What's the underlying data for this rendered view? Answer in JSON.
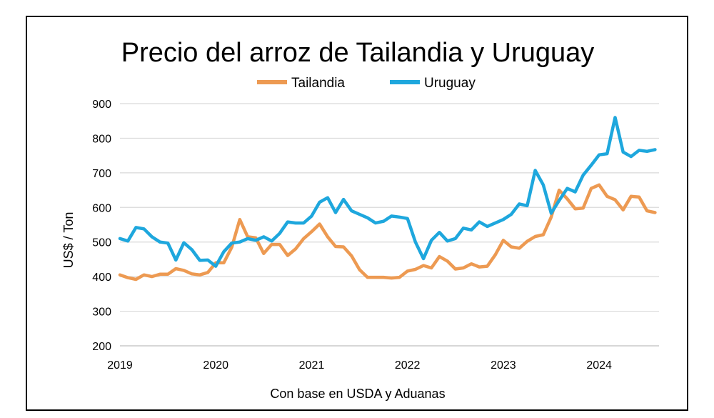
{
  "chart_data": {
    "type": "line",
    "title": "Precio del arroz de Tailandia y Uruguay",
    "xlabel": "Con base en USDA y Aduanas",
    "ylabel": "US$ / Ton",
    "ylim": [
      200,
      900
    ],
    "yticks": [
      200,
      300,
      400,
      500,
      600,
      700,
      800,
      900
    ],
    "xlim": [
      2019,
      2024.625
    ],
    "xticks": [
      "2019",
      "2020",
      "2021",
      "2022",
      "2023",
      "2024"
    ],
    "grid": true,
    "legend_position": "top",
    "series": [
      {
        "name": "Tailandia",
        "color": "#ED9A52",
        "x": [
          2019.0,
          2019.083,
          2019.167,
          2019.25,
          2019.333,
          2019.417,
          2019.5,
          2019.583,
          2019.667,
          2019.75,
          2019.833,
          2019.917,
          2020.0,
          2020.083,
          2020.167,
          2020.25,
          2020.333,
          2020.417,
          2020.5,
          2020.583,
          2020.667,
          2020.75,
          2020.833,
          2020.917,
          2021.0,
          2021.083,
          2021.167,
          2021.25,
          2021.333,
          2021.417,
          2021.5,
          2021.583,
          2021.667,
          2021.75,
          2021.833,
          2021.917,
          2022.0,
          2022.083,
          2022.167,
          2022.25,
          2022.333,
          2022.417,
          2022.5,
          2022.583,
          2022.667,
          2022.75,
          2022.833,
          2022.917,
          2023.0,
          2023.083,
          2023.167,
          2023.25,
          2023.333,
          2023.417,
          2023.5,
          2023.583,
          2023.667,
          2023.75,
          2023.833,
          2023.917,
          2024.0,
          2024.083,
          2024.167,
          2024.25,
          2024.333,
          2024.417,
          2024.5,
          2024.583
        ],
        "y": [
          405,
          397,
          392,
          405,
          400,
          407,
          407,
          423,
          418,
          408,
          405,
          412,
          440,
          440,
          485,
          565,
          515,
          512,
          467,
          493,
          493,
          461,
          480,
          510,
          530,
          552,
          515,
          487,
          486,
          460,
          420,
          398,
          398,
          398,
          396,
          398,
          416,
          421,
          432,
          425,
          458,
          445,
          422,
          425,
          437,
          428,
          430,
          463,
          505,
          486,
          482,
          502,
          516,
          521,
          572,
          650,
          625,
          596,
          598,
          655,
          665,
          632,
          622,
          593,
          632,
          630,
          590,
          585
        ]
      },
      {
        "name": "Uruguay",
        "color": "#1EA7DD",
        "x": [
          2019.0,
          2019.083,
          2019.167,
          2019.25,
          2019.333,
          2019.417,
          2019.5,
          2019.583,
          2019.667,
          2019.75,
          2019.833,
          2019.917,
          2020.0,
          2020.083,
          2020.167,
          2020.25,
          2020.333,
          2020.417,
          2020.5,
          2020.583,
          2020.667,
          2020.75,
          2020.833,
          2020.917,
          2021.0,
          2021.083,
          2021.167,
          2021.25,
          2021.333,
          2021.417,
          2021.5,
          2021.583,
          2021.667,
          2021.75,
          2021.833,
          2021.917,
          2022.0,
          2022.083,
          2022.167,
          2022.25,
          2022.333,
          2022.417,
          2022.5,
          2022.583,
          2022.667,
          2022.75,
          2022.833,
          2022.917,
          2023.0,
          2023.083,
          2023.167,
          2023.25,
          2023.333,
          2023.417,
          2023.5,
          2023.583,
          2023.667,
          2023.75,
          2023.833,
          2023.917,
          2024.0,
          2024.083,
          2024.167,
          2024.25,
          2024.333,
          2024.417,
          2024.5,
          2024.583
        ],
        "y": [
          510,
          503,
          542,
          538,
          515,
          500,
          497,
          448,
          498,
          478,
          447,
          448,
          430,
          472,
          497,
          500,
          510,
          505,
          515,
          503,
          525,
          558,
          555,
          555,
          575,
          615,
          628,
          585,
          623,
          590,
          580,
          570,
          555,
          560,
          575,
          572,
          568,
          500,
          452,
          505,
          528,
          503,
          510,
          540,
          535,
          558,
          545,
          555,
          565,
          580,
          610,
          605,
          707,
          665,
          583,
          620,
          655,
          645,
          693,
          722,
          752,
          755,
          860,
          760,
          747,
          765,
          762,
          767
        ]
      }
    ]
  }
}
